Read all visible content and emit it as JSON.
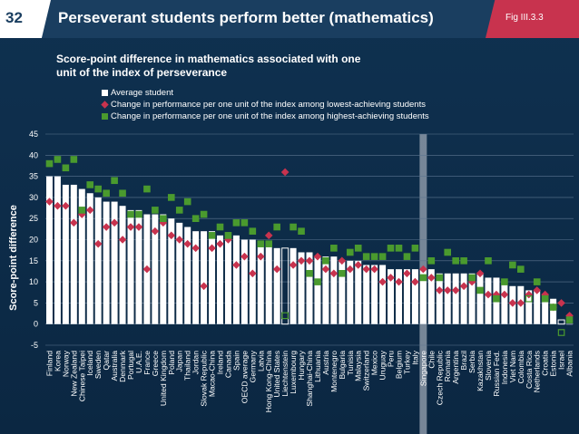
{
  "slide": {
    "number": "32",
    "title": "Perseverant students perform better (mathematics)",
    "fig_label": "Fig III.3.3",
    "subtitle": "Score-point difference in mathematics associated with one unit of the index of  perseverance"
  },
  "colors": {
    "background": "#0d2c49",
    "header": "#1a3e60",
    "accent": "#c8334e",
    "bar": "#ffffff",
    "low": "#c8334e",
    "high": "#4a9a2e",
    "highlight": "#8a97a6"
  },
  "chart_data": {
    "type": "bar",
    "ylabel": "Score-point difference",
    "ylim": [
      -5,
      45
    ],
    "yticks": [
      -5,
      0,
      5,
      10,
      15,
      20,
      25,
      30,
      35,
      40,
      45
    ],
    "grid": true,
    "legend_position": "top",
    "highlighted_category": "Singapore",
    "categories": [
      "Finland",
      "Korea",
      "Norway",
      "New Zealand",
      "Chinese Taipei",
      "Iceland",
      "Sweden",
      "Qatar",
      "Australia",
      "Denmark",
      "Portugal",
      "U.A.E.",
      "France",
      "Greece",
      "United Kingdom",
      "Poland",
      "Japan",
      "Thailand",
      "Jordan",
      "Slovak Republic",
      "Macao-China",
      "Ireland",
      "Canada",
      "Spain",
      "OECD average",
      "Germany",
      "Latvia",
      "Hong Kong-China",
      "United States",
      "Liechtenstein",
      "Luxembourg",
      "Hungary",
      "Shanghai-China",
      "Lithuania",
      "Austria",
      "Montenegro",
      "Bulgaria",
      "Tunisia",
      "Malaysia",
      "Switzerland",
      "Mexico",
      "Uruguay",
      "Peru",
      "Belgium",
      "Turkey",
      "Italy",
      "Singapore",
      "Chile",
      "Czech Republic",
      "Romania",
      "Argentina",
      "Brazil",
      "Serbia",
      "Kazakhstan",
      "Slovenia",
      "Russian Fed.",
      "Indonesia",
      "Viet Nam",
      "Colombia",
      "Costa Rica",
      "Netherlands",
      "Croatia",
      "Estonia",
      "Israel",
      "Albania"
    ],
    "series": [
      {
        "name": "Average student",
        "marker": "bar",
        "significant": [
          true,
          true,
          true,
          true,
          true,
          true,
          true,
          true,
          true,
          true,
          true,
          true,
          true,
          true,
          true,
          true,
          true,
          true,
          true,
          true,
          true,
          true,
          true,
          true,
          true,
          true,
          true,
          true,
          true,
          false,
          true,
          true,
          true,
          true,
          true,
          true,
          true,
          true,
          true,
          true,
          true,
          true,
          true,
          true,
          true,
          true,
          true,
          true,
          true,
          true,
          true,
          true,
          true,
          true,
          true,
          true,
          true,
          true,
          true,
          true,
          true,
          true,
          true,
          false,
          true
        ],
        "values": [
          35,
          35,
          33,
          33,
          32,
          31,
          30,
          29,
          29,
          28,
          27,
          27,
          26,
          26,
          26,
          25,
          24,
          23,
          22,
          22,
          22,
          21,
          21,
          21,
          20,
          20,
          19,
          19,
          18,
          18,
          18,
          17,
          17,
          16,
          16,
          16,
          15,
          15,
          15,
          14,
          14,
          14,
          13,
          13,
          13,
          13,
          13,
          13,
          12,
          12,
          12,
          12,
          12,
          12,
          11,
          11,
          10,
          9,
          9,
          8,
          8,
          7,
          6,
          1,
          0
        ]
      },
      {
        "name": "Change in performance per one unit of the index among lowest-achieving students",
        "marker": "diamond",
        "significant": [
          true,
          true,
          true,
          true,
          true,
          true,
          true,
          true,
          true,
          true,
          true,
          true,
          true,
          true,
          true,
          true,
          true,
          true,
          true,
          true,
          true,
          true,
          true,
          true,
          true,
          true,
          true,
          true,
          true,
          true,
          true,
          true,
          true,
          true,
          true,
          true,
          true,
          true,
          true,
          true,
          true,
          true,
          true,
          true,
          true,
          true,
          true,
          true,
          true,
          true,
          true,
          true,
          true,
          true,
          true,
          true,
          true,
          true,
          true,
          true,
          true,
          true,
          true,
          true,
          true
        ],
        "values": [
          29,
          28,
          28,
          24,
          26,
          27,
          19,
          23,
          24,
          20,
          23,
          23,
          13,
          22,
          24,
          21,
          20,
          19,
          18,
          9,
          18,
          19,
          20,
          14,
          16,
          12,
          16,
          21,
          13,
          36,
          14,
          15,
          15,
          16,
          13,
          12,
          15,
          13,
          14,
          13,
          13,
          10,
          11,
          10,
          12,
          10,
          13,
          11,
          8,
          8,
          8,
          9,
          10,
          12,
          7,
          7,
          7,
          5,
          5,
          7,
          8,
          7,
          4,
          5,
          2
        ]
      },
      {
        "name": "Change in performance per one unit of the index among highest-achieving students",
        "marker": "square",
        "significant": [
          true,
          true,
          true,
          true,
          true,
          true,
          true,
          true,
          true,
          true,
          true,
          true,
          true,
          true,
          true,
          true,
          true,
          true,
          true,
          true,
          true,
          true,
          true,
          true,
          true,
          true,
          true,
          true,
          true,
          false,
          true,
          true,
          true,
          true,
          true,
          true,
          true,
          true,
          true,
          true,
          true,
          true,
          true,
          true,
          true,
          true,
          true,
          true,
          true,
          true,
          true,
          true,
          true,
          true,
          true,
          true,
          true,
          true,
          true,
          false,
          true,
          true,
          true,
          false,
          true
        ],
        "values": [
          38,
          39,
          37,
          39,
          27,
          33,
          32,
          31,
          34,
          31,
          26,
          26,
          32,
          27,
          25,
          30,
          27,
          29,
          25,
          26,
          21,
          23,
          21,
          24,
          24,
          22,
          19,
          19,
          23,
          2,
          23,
          22,
          12,
          10,
          15,
          18,
          12,
          17,
          18,
          16,
          16,
          16,
          18,
          18,
          16,
          18,
          11,
          15,
          11,
          17,
          15,
          15,
          11,
          8,
          15,
          6,
          10,
          14,
          13,
          6,
          10,
          6,
          4,
          -2,
          1
        ]
      }
    ]
  }
}
